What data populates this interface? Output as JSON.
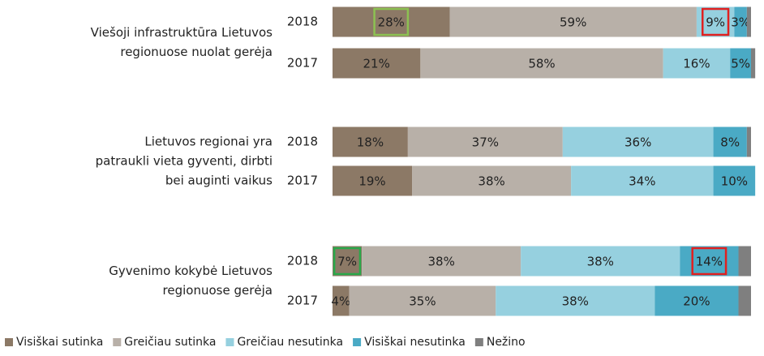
{
  "chart_data": {
    "type": "stacked-bar-horizontal",
    "group_labels": [
      [
        "Viešoji infrastruktūra Lietuvos",
        "regionuose nuolat gerėja"
      ],
      [
        "Lietuvos regionai yra",
        "patraukli vieta gyventi, dirbti",
        "bei auginti vaikus"
      ],
      [
        "Gyvenimo kokybė Lietuvos",
        "regionuose gerėja"
      ]
    ],
    "categories": [
      "2018",
      "2017",
      "2018",
      "2017",
      "2018",
      "2017"
    ],
    "xlim": [
      0,
      100
    ],
    "legend": "bottom",
    "series": [
      {
        "name": "Visiškai sutinka",
        "color": "#8c7966",
        "values": [
          28,
          21,
          18,
          19,
          7,
          4
        ],
        "value_labels": [
          "28%",
          "21%",
          "18%",
          "19%",
          "7%",
          "4%"
        ]
      },
      {
        "name": "Greičiau sutinka",
        "color": "#b8b0a8",
        "values": [
          59,
          58,
          37,
          38,
          38,
          35
        ],
        "value_labels": [
          "59%",
          "58%",
          "37%",
          "38%",
          "38%",
          "35%"
        ]
      },
      {
        "name": "Greičiau nesutinka",
        "color": "#96d0df",
        "values": [
          9,
          16,
          36,
          34,
          38,
          38
        ],
        "value_labels": [
          "9%",
          "16%",
          "36%",
          "34%",
          "38%",
          "38%"
        ]
      },
      {
        "name": "Visiškai nesutinka",
        "color": "#4aaac5",
        "values": [
          3,
          5,
          8,
          10,
          14,
          20
        ],
        "value_labels": [
          "3%",
          "5%",
          "8%",
          "10%",
          "14%",
          "20%"
        ]
      },
      {
        "name": "Nežino",
        "color": "#7f7f7f",
        "values": [
          1,
          1,
          1,
          0,
          3,
          3
        ],
        "value_labels": [
          null,
          null,
          null,
          null,
          null,
          null
        ]
      }
    ]
  }
}
